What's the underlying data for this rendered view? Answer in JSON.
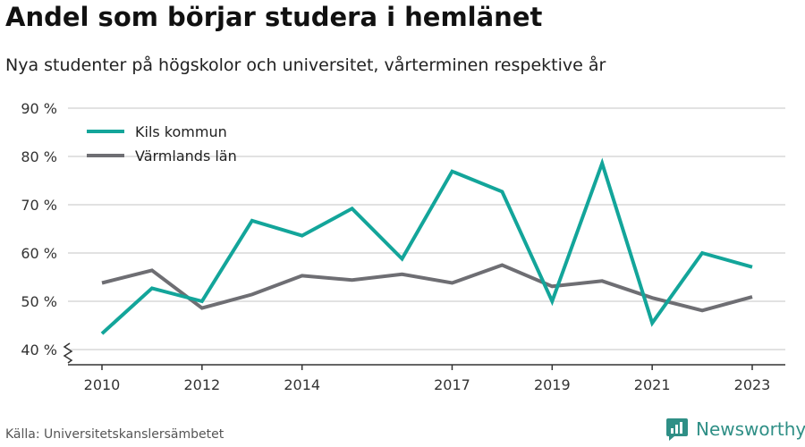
{
  "title": "Andel som börjar studera i hemlänet",
  "subtitle": "Nya studenter på högskolor och universitet, vårterminen respektive år",
  "source": "Källa: Universitetskanslersämbetet",
  "brand": {
    "name": "Newsworthy",
    "icon": "newsworthy-logo-icon"
  },
  "colors": {
    "kils": "#13a59a",
    "varmland": "#6e6e73",
    "grid": "#d9d9d9",
    "axis": "#333333",
    "brand": "#2f8f86"
  },
  "chart_data": {
    "type": "line",
    "x": [
      2010,
      2011,
      2012,
      2013,
      2014,
      2015,
      2016,
      2017,
      2018,
      2019,
      2020,
      2021,
      2022,
      2023
    ],
    "x_ticks": [
      2010,
      2012,
      2014,
      2017,
      2019,
      2021,
      2023
    ],
    "y_ticks": [
      40,
      50,
      60,
      70,
      80,
      90
    ],
    "y_tick_labels": [
      "40 %",
      "50 %",
      "60 %",
      "70 %",
      "80 %",
      "90 %"
    ],
    "ylim": [
      40,
      90
    ],
    "xlim": [
      2010,
      2023
    ],
    "grid": true,
    "axis_break": true,
    "legend_position": "top-left",
    "series": [
      {
        "name": "Kils kommun",
        "color": "#13a59a",
        "values": [
          43.3,
          52.7,
          50.0,
          66.7,
          63.6,
          69.2,
          58.8,
          76.9,
          72.7,
          50.0,
          78.6,
          45.5,
          60.0,
          57.1
        ]
      },
      {
        "name": "Värmlands län",
        "color": "#6e6e73",
        "values": [
          53.8,
          56.4,
          48.6,
          51.4,
          55.3,
          54.4,
          55.6,
          53.8,
          57.5,
          53.1,
          54.2,
          50.7,
          48.1,
          50.9
        ]
      }
    ]
  }
}
